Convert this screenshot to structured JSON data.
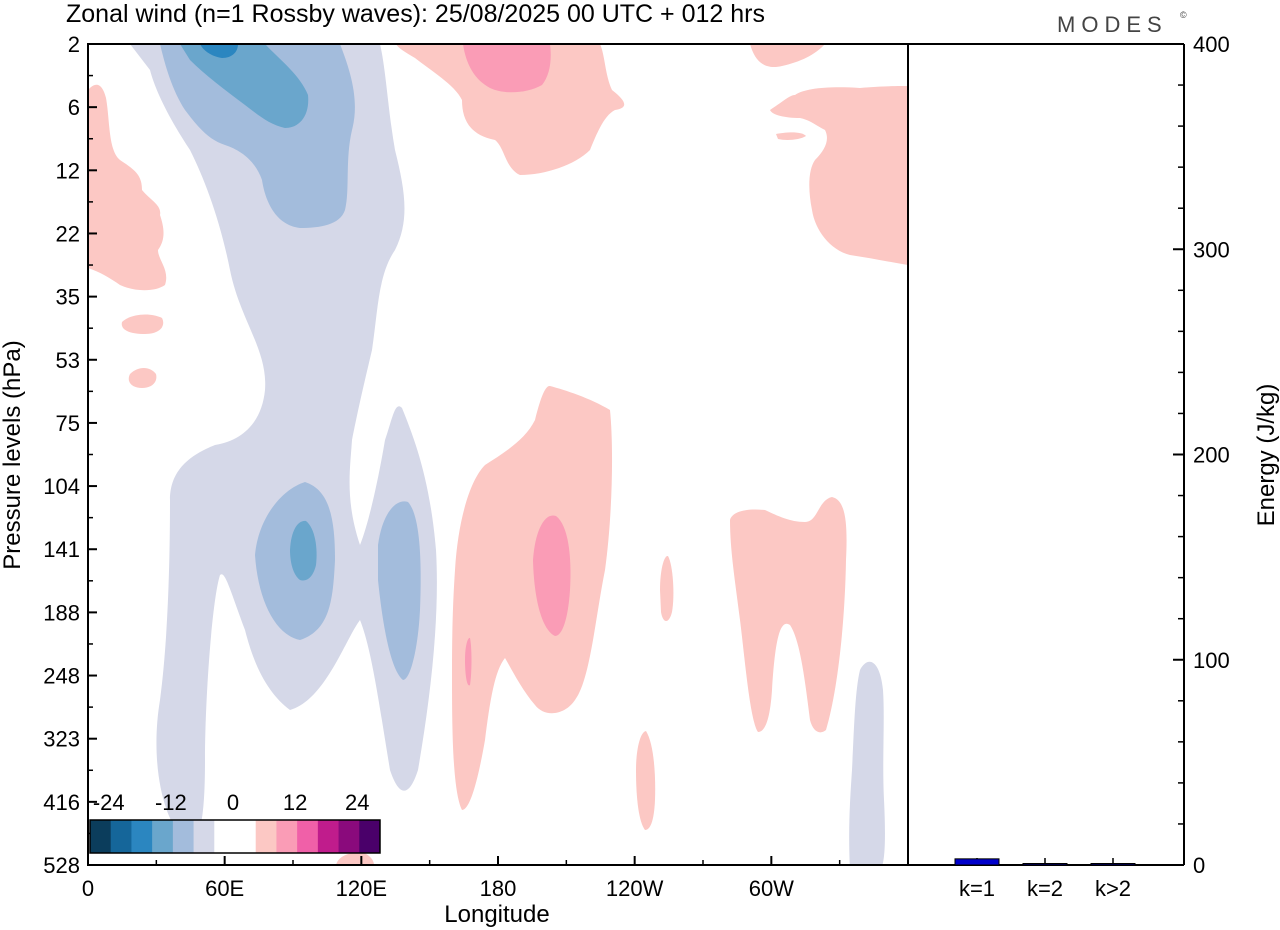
{
  "chart_data": [
    {
      "type": "heatmap",
      "title": "Zonal wind (n=1 Rossby waves):  25/08/2025  00 UTC  + 012 hrs",
      "xlabel": "Longitude",
      "ylabel": "Pressure levels (hPa)",
      "x_ticks": [
        "0",
        "60E",
        "120E",
        "180",
        "120W",
        "60W"
      ],
      "y_ticks": [
        "2",
        "6",
        "12",
        "22",
        "35",
        "53",
        "75",
        "104",
        "141",
        "188",
        "248",
        "323",
        "416",
        "528"
      ],
      "colorbar": {
        "labels": [
          "-24",
          "-12",
          "0",
          "12",
          "24"
        ],
        "colors": [
          "#0b3d5c",
          "#15669a",
          "#2b86c0",
          "#6aa6cc",
          "#a3bcdc",
          "#d5d8e8",
          "#ffffff",
          "#ffffff",
          "#fcc8c4",
          "#fa9cb6",
          "#f060a8",
          "#c01c8c",
          "#8a0a7c",
          "#4a006a"
        ]
      }
    },
    {
      "type": "bar",
      "ylabel": "Energy (J/kg)",
      "ylim": [
        0,
        400
      ],
      "y_ticks": [
        "0",
        "100",
        "200",
        "300",
        "400"
      ],
      "categories": [
        "k=1",
        "k=2",
        "k>2"
      ],
      "values": [
        3,
        0.3,
        0.6
      ],
      "bar_colors": [
        "#0000cc",
        "#000080",
        "#000080"
      ]
    }
  ],
  "logo": "MODES",
  "logo_mark": "©"
}
